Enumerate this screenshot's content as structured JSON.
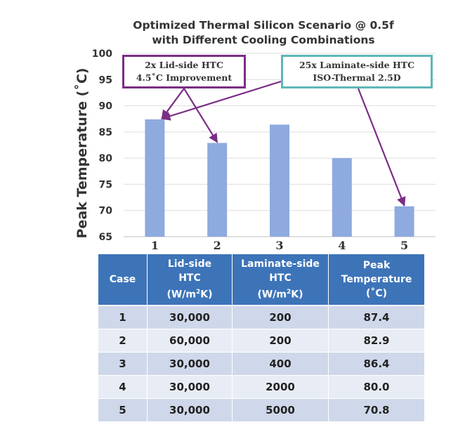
{
  "chart_data": {
    "type": "bar",
    "title": "Optimized Thermal Silicon Scenario @ 0.5f",
    "subtitle": "with Different Cooling Combinations",
    "ylabel": "Peak Temperature (˚C)",
    "xlabel": "",
    "categories": [
      "1",
      "2",
      "3",
      "4",
      "5"
    ],
    "values": [
      87.4,
      82.9,
      86.4,
      80.0,
      70.8
    ],
    "ylim": [
      65,
      100
    ],
    "yticks": [
      "65",
      "70",
      "75",
      "80",
      "85",
      "90",
      "95",
      "100"
    ],
    "grid": true,
    "legend": "none",
    "bar_color": "#8eaadf",
    "annotations": [
      {
        "lines": [
          "2x Lid-side HTC",
          "4.5˚C Improvement"
        ],
        "border_color": "#7a2e85",
        "arrows_to_categories": [
          "1",
          "2"
        ]
      },
      {
        "lines": [
          "25x Laminate-side HTC",
          "ISO-Thermal 2.5D"
        ],
        "border_color": "#5fb7b6",
        "arrows_to_categories": [
          "1",
          "5"
        ]
      }
    ]
  },
  "table": {
    "header": {
      "case": "Case",
      "lid_line1": "Lid-side",
      "lid_line2": "HTC",
      "lid_unit_pre": "(W/m",
      "lid_unit_sup": "2",
      "lid_unit_post": "K)",
      "lam_line1": "Laminate-side",
      "lam_line2": "HTC",
      "lam_unit_pre": "(W/m",
      "lam_unit_sup": "2",
      "lam_unit_post": "K)",
      "peak_line1": "Peak",
      "peak_line2": "Temperature",
      "peak_line3": "(˚C)"
    },
    "rows": [
      {
        "case": "1",
        "lid": "30,000",
        "laminate": "200",
        "peak": "87.4"
      },
      {
        "case": "2",
        "lid": "60,000",
        "laminate": "200",
        "peak": "82.9"
      },
      {
        "case": "3",
        "lid": "30,000",
        "laminate": "400",
        "peak": "86.4"
      },
      {
        "case": "4",
        "lid": "30,000",
        "laminate": "2000",
        "peak": "80.0"
      },
      {
        "case": "5",
        "lid": "30,000",
        "laminate": "5000",
        "peak": "70.8"
      }
    ],
    "colors": {
      "header_bg": "#3d74b8",
      "row_odd": "#cfd8ea",
      "row_even": "#e8edf5"
    }
  }
}
